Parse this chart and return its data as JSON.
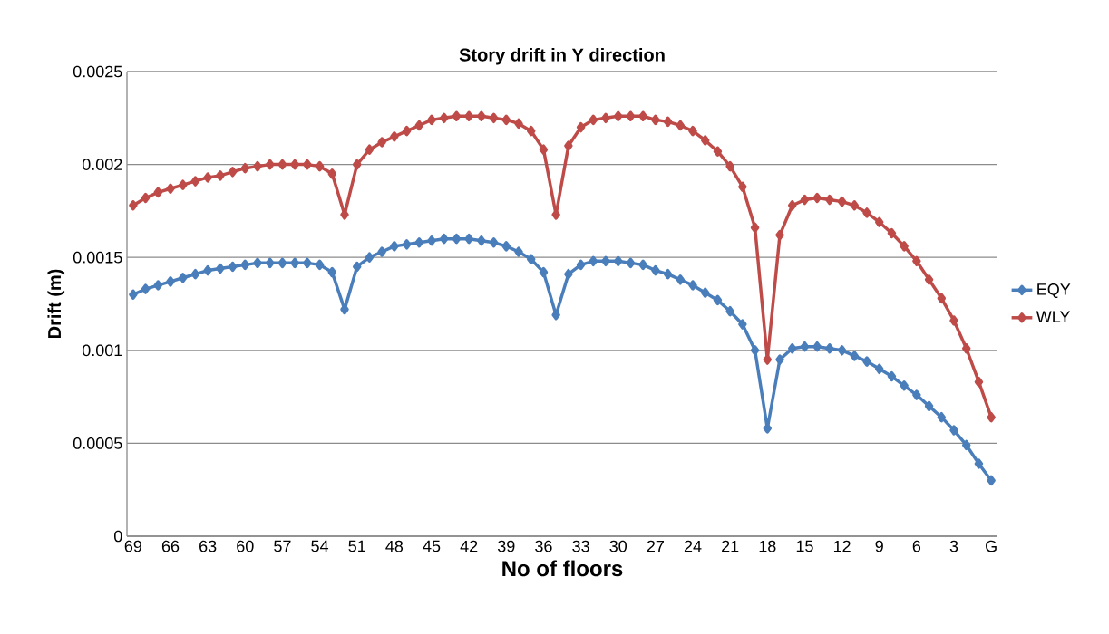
{
  "chart_data": {
    "type": "line",
    "title": "Story drift in Y direction",
    "xlabel": "No of floors",
    "ylabel": "Drift (m)",
    "categories": [
      "69",
      null,
      null,
      "66",
      null,
      null,
      "63",
      null,
      null,
      "60",
      null,
      null,
      "57",
      null,
      null,
      "54",
      null,
      null,
      "51",
      null,
      null,
      "48",
      null,
      null,
      "45",
      null,
      null,
      "42",
      null,
      null,
      "39",
      null,
      null,
      "36",
      null,
      null,
      "33",
      null,
      null,
      "30",
      null,
      null,
      "27",
      null,
      null,
      "24",
      null,
      null,
      "21",
      null,
      null,
      "18",
      null,
      null,
      "15",
      null,
      null,
      "12",
      null,
      null,
      "9",
      null,
      null,
      "6",
      null,
      null,
      "3",
      null,
      null,
      "G"
    ],
    "series": [
      {
        "name": "EQY",
        "color": "#4a7ebb",
        "values": [
          0.0013,
          0.00133,
          0.00135,
          0.00137,
          0.00139,
          0.00141,
          0.00143,
          0.00144,
          0.00145,
          0.00146,
          0.00147,
          0.00147,
          0.00147,
          0.00147,
          0.00147,
          0.00146,
          0.00142,
          0.00122,
          0.00145,
          0.0015,
          0.00153,
          0.00156,
          0.00157,
          0.00158,
          0.00159,
          0.0016,
          0.0016,
          0.0016,
          0.00159,
          0.00158,
          0.00156,
          0.00153,
          0.00149,
          0.00142,
          0.00119,
          0.00141,
          0.00146,
          0.00148,
          0.00148,
          0.00148,
          0.00147,
          0.00146,
          0.00143,
          0.00141,
          0.00138,
          0.00135,
          0.00131,
          0.00127,
          0.00121,
          0.00114,
          0.001,
          0.00058,
          0.00095,
          0.00101,
          0.00102,
          0.00102,
          0.00101,
          0.001,
          0.00097,
          0.00094,
          0.0009,
          0.00086,
          0.00081,
          0.00076,
          0.0007,
          0.00064,
          0.00057,
          0.00049,
          0.00039,
          0.0003
        ]
      },
      {
        "name": "WLY",
        "color": "#be4b48",
        "values": [
          0.00178,
          0.00182,
          0.00185,
          0.00187,
          0.00189,
          0.00191,
          0.00193,
          0.00194,
          0.00196,
          0.00198,
          0.00199,
          0.002,
          0.002,
          0.002,
          0.002,
          0.00199,
          0.00195,
          0.00173,
          0.002,
          0.00208,
          0.00212,
          0.00215,
          0.00218,
          0.00221,
          0.00224,
          0.00225,
          0.00226,
          0.00226,
          0.00226,
          0.00225,
          0.00224,
          0.00222,
          0.00218,
          0.00208,
          0.00173,
          0.0021,
          0.0022,
          0.00224,
          0.00225,
          0.00226,
          0.00226,
          0.00226,
          0.00224,
          0.00223,
          0.00221,
          0.00218,
          0.00213,
          0.00207,
          0.00199,
          0.00188,
          0.00166,
          0.00095,
          0.00162,
          0.00178,
          0.00181,
          0.00182,
          0.00181,
          0.0018,
          0.00178,
          0.00174,
          0.00169,
          0.00163,
          0.00156,
          0.00148,
          0.00138,
          0.00128,
          0.00116,
          0.00101,
          0.00083,
          0.00064
        ]
      }
    ],
    "ylim": [
      0,
      0.0025
    ],
    "yticks": [
      0,
      0.0005,
      0.001,
      0.0015,
      0.002,
      0.0025
    ],
    "grid": "y",
    "legend": "right",
    "marker": "diamond",
    "line_style": "solid"
  }
}
